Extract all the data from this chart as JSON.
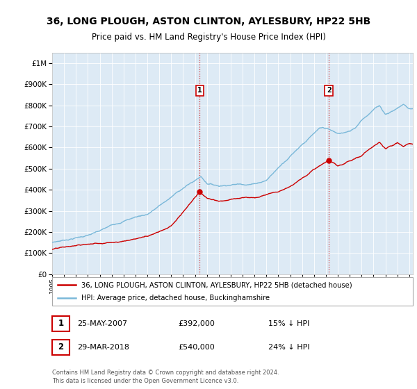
{
  "title": "36, LONG PLOUGH, ASTON CLINTON, AYLESBURY, HP22 5HB",
  "subtitle": "Price paid vs. HM Land Registry's House Price Index (HPI)",
  "sale1_date": "25-MAY-2007",
  "sale1_price": 392000,
  "sale1_label": "15% ↓ HPI",
  "sale2_date": "29-MAR-2018",
  "sale2_price": 540000,
  "sale2_label": "24% ↓ HPI",
  "legend_property": "36, LONG PLOUGH, ASTON CLINTON, AYLESBURY, HP22 5HB (detached house)",
  "legend_hpi": "HPI: Average price, detached house, Buckinghamshire",
  "footer": "Contains HM Land Registry data © Crown copyright and database right 2024.\nThis data is licensed under the Open Government Licence v3.0.",
  "hpi_color": "#7ab8d9",
  "sale_color": "#cc0000",
  "sale1_x": 2007.4,
  "sale2_x": 2018.25,
  "ylim_max": 1050000,
  "xlim_min": 1995,
  "xlim_max": 2025.3,
  "background_color": "#ddeaf5"
}
